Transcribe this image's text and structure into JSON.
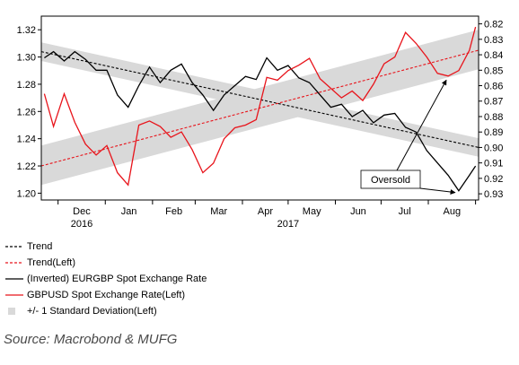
{
  "chart_data": {
    "type": "line",
    "x_months": [
      "Dec",
      "Jan",
      "Feb",
      "Mar",
      "Apr",
      "May",
      "Jun",
      "Jul",
      "Aug"
    ],
    "x_years": [
      "2016",
      "2017"
    ],
    "left_axis": {
      "ticks": [
        1.2,
        1.22,
        1.24,
        1.26,
        1.28,
        1.3,
        1.32
      ],
      "range": [
        1.195,
        1.33
      ]
    },
    "right_axis": {
      "ticks": [
        0.82,
        0.83,
        0.84,
        0.85,
        0.86,
        0.87,
        0.88,
        0.89,
        0.9,
        0.91,
        0.92,
        0.93
      ],
      "inverted": true,
      "range": [
        0.815,
        0.934
      ]
    },
    "annotation": "Oversold",
    "series": [
      {
        "name": "Trend",
        "axis": "right",
        "style": "dashed",
        "color": "#000000",
        "points": [
          [
            "2016-11-20",
            0.838
          ],
          [
            "2017-09-03",
            0.9
          ]
        ]
      },
      {
        "name": "Trend(Left)",
        "axis": "left",
        "style": "dashed",
        "color": "#e8141b",
        "points": [
          [
            "2016-11-20",
            1.22
          ],
          [
            "2017-09-03",
            1.305
          ]
        ]
      },
      {
        "name": "(Inverted) EURGBP Spot Exchange Rate",
        "axis": "right",
        "color": "#000000",
        "points": [
          [
            "2016-11-22",
            0.842
          ],
          [
            "2016-11-28",
            0.838
          ],
          [
            "2016-12-05",
            0.844
          ],
          [
            "2016-12-12",
            0.838
          ],
          [
            "2016-12-19",
            0.843
          ],
          [
            "2016-12-26",
            0.85
          ],
          [
            "2017-01-02",
            0.85
          ],
          [
            "2017-01-09",
            0.866
          ],
          [
            "2017-01-16",
            0.874
          ],
          [
            "2017-01-23",
            0.86
          ],
          [
            "2017-01-30",
            0.848
          ],
          [
            "2017-02-06",
            0.858
          ],
          [
            "2017-02-13",
            0.85
          ],
          [
            "2017-02-20",
            0.846
          ],
          [
            "2017-02-27",
            0.858
          ],
          [
            "2017-03-06",
            0.866
          ],
          [
            "2017-03-13",
            0.876
          ],
          [
            "2017-03-20",
            0.866
          ],
          [
            "2017-03-27",
            0.86
          ],
          [
            "2017-04-03",
            0.854
          ],
          [
            "2017-04-10",
            0.856
          ],
          [
            "2017-04-17",
            0.842
          ],
          [
            "2017-04-24",
            0.85
          ],
          [
            "2017-05-01",
            0.847
          ],
          [
            "2017-05-08",
            0.855
          ],
          [
            "2017-05-15",
            0.858
          ],
          [
            "2017-05-22",
            0.866
          ],
          [
            "2017-05-29",
            0.874
          ],
          [
            "2017-06-05",
            0.872
          ],
          [
            "2017-06-12",
            0.88
          ],
          [
            "2017-06-19",
            0.876
          ],
          [
            "2017-06-26",
            0.884
          ],
          [
            "2017-07-03",
            0.879
          ],
          [
            "2017-07-10",
            0.878
          ],
          [
            "2017-07-17",
            0.887
          ],
          [
            "2017-07-24",
            0.89
          ],
          [
            "2017-07-31",
            0.902
          ],
          [
            "2017-08-07",
            0.91
          ],
          [
            "2017-08-14",
            0.918
          ],
          [
            "2017-08-21",
            0.928
          ],
          [
            "2017-08-28",
            0.918
          ],
          [
            "2017-09-01",
            0.912
          ]
        ]
      },
      {
        "name": "GBPUSD Spot Exchange Rate(Left)",
        "axis": "left",
        "color": "#e8141b",
        "points": [
          [
            "2016-11-22",
            1.273
          ],
          [
            "2016-11-28",
            1.249
          ],
          [
            "2016-12-05",
            1.273
          ],
          [
            "2016-12-12",
            1.252
          ],
          [
            "2016-12-19",
            1.236
          ],
          [
            "2016-12-26",
            1.228
          ],
          [
            "2017-01-02",
            1.235
          ],
          [
            "2017-01-09",
            1.215
          ],
          [
            "2017-01-16",
            1.206
          ],
          [
            "2017-01-23",
            1.25
          ],
          [
            "2017-01-30",
            1.253
          ],
          [
            "2017-02-06",
            1.249
          ],
          [
            "2017-02-13",
            1.241
          ],
          [
            "2017-02-20",
            1.245
          ],
          [
            "2017-02-27",
            1.232
          ],
          [
            "2017-03-06",
            1.215
          ],
          [
            "2017-03-13",
            1.222
          ],
          [
            "2017-03-20",
            1.24
          ],
          [
            "2017-03-27",
            1.248
          ],
          [
            "2017-04-03",
            1.25
          ],
          [
            "2017-04-10",
            1.254
          ],
          [
            "2017-04-17",
            1.285
          ],
          [
            "2017-04-24",
            1.283
          ],
          [
            "2017-05-01",
            1.29
          ],
          [
            "2017-05-08",
            1.294
          ],
          [
            "2017-05-15",
            1.299
          ],
          [
            "2017-05-22",
            1.284
          ],
          [
            "2017-05-29",
            1.277
          ],
          [
            "2017-06-05",
            1.27
          ],
          [
            "2017-06-12",
            1.275
          ],
          [
            "2017-06-19",
            1.268
          ],
          [
            "2017-06-26",
            1.28
          ],
          [
            "2017-07-03",
            1.295
          ],
          [
            "2017-07-10",
            1.3
          ],
          [
            "2017-07-17",
            1.318
          ],
          [
            "2017-07-24",
            1.31
          ],
          [
            "2017-07-31",
            1.3
          ],
          [
            "2017-08-07",
            1.288
          ],
          [
            "2017-08-14",
            1.286
          ],
          [
            "2017-08-21",
            1.29
          ],
          [
            "2017-08-28",
            1.305
          ],
          [
            "2017-09-01",
            1.322
          ]
        ]
      }
    ],
    "bands": [
      {
        "name": "+/- 1 Standard Deviation(Left)",
        "color": "#d9d9d9",
        "axis": "left",
        "start": [
          "2016-11-20",
          1.206,
          1.235
        ],
        "end": [
          "2017-09-03",
          1.291,
          1.32
        ]
      },
      {
        "name": "+/- 1 Standard Deviation(Left)",
        "color": "#d9d9d9",
        "axis": "right",
        "start": [
          "2016-11-20",
          0.832,
          0.844
        ],
        "end": [
          "2017-09-03",
          0.894,
          0.906
        ]
      }
    ]
  },
  "legend": {
    "trend": "Trend",
    "trend_left": "Trend(Left)",
    "eurgbp": "(Inverted) EURGBP Spot Exchange Rate",
    "gbpusd": "GBPUSD Spot Exchange Rate(Left)",
    "band": "+/- 1 Standard Deviation(Left)"
  },
  "source": "Source: Macrobond & MUFG"
}
